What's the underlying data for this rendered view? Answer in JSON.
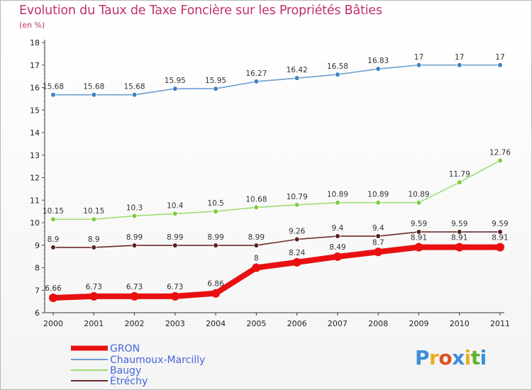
{
  "title": "Evolution du Taux de Taxe Foncière sur les Propriétés Bâties",
  "subtitle": "(en %)",
  "logo": {
    "letters": [
      "P",
      "r",
      "o",
      "x",
      "i",
      "t",
      "i"
    ],
    "colors": [
      "#3a8fd8",
      "#e8b020",
      "#e05020",
      "#3a8fd8",
      "#e8b020",
      "#60b030",
      "#3a8fd8"
    ]
  },
  "chart_data": {
    "type": "line",
    "title": "Evolution du Taux de Taxe Foncière sur les Propriétés Bâties",
    "ylabel": "(en %)",
    "ylim": [
      6,
      18
    ],
    "yticks": [
      6,
      7,
      8,
      9,
      10,
      11,
      12,
      13,
      14,
      15,
      16,
      17,
      18
    ],
    "x": [
      "2000",
      "2001",
      "2002",
      "2003",
      "2004",
      "2005",
      "2006",
      "2007",
      "2008",
      "2009",
      "2010",
      "2011"
    ],
    "series": [
      {
        "name": "Chaumoux-Marcilly",
        "color": "#6b9fd0",
        "marker": "#3f82c5",
        "values": [
          15.68,
          15.68,
          15.68,
          15.95,
          15.95,
          16.27,
          16.42,
          16.58,
          16.83,
          17,
          17,
          17
        ],
        "labels": [
          "15.68",
          "15.68",
          "15.68",
          "15.95",
          "15.95",
          "16.27",
          "16.42",
          "16.58",
          "16.83",
          "17",
          "17",
          "17"
        ]
      },
      {
        "name": "Baugy",
        "color": "#9fdc6f",
        "marker": "#7ccc3f",
        "values": [
          10.15,
          10.15,
          10.3,
          10.4,
          10.5,
          10.68,
          10.79,
          10.89,
          10.89,
          10.89,
          11.79,
          12.76
        ],
        "labels": [
          "10.15",
          "10.15",
          "10.3",
          "10.4",
          "10.5",
          "10.68",
          "10.79",
          "10.89",
          "10.89",
          "10.89",
          "11.79",
          "12.76"
        ]
      },
      {
        "name": "Étréchy",
        "color": "#6b2a2a",
        "marker": "#5a1f1f",
        "values": [
          8.9,
          8.9,
          8.99,
          8.99,
          8.99,
          8.99,
          9.26,
          9.4,
          9.4,
          9.59,
          9.59,
          9.59
        ],
        "labels": [
          "8.9",
          "8.9",
          "8.99",
          "8.99",
          "8.99",
          "8.99",
          "9.26",
          "9.4",
          "9.4",
          "9.59",
          "9.59",
          "9.59"
        ]
      },
      {
        "name": "GRON",
        "color": "#e81010",
        "marker": "#e81010",
        "bold": true,
        "values": [
          6.66,
          6.73,
          6.73,
          6.73,
          6.86,
          8,
          8.24,
          8.49,
          8.7,
          8.91,
          8.91,
          8.91
        ],
        "labels": [
          "6.66",
          "6.73",
          "6.73",
          "6.73",
          "6.86",
          "8",
          "8.24",
          "8.49",
          "8.7",
          "8.91",
          "8.91",
          "8.91"
        ]
      }
    ],
    "legend": [
      "GRON",
      "Chaumoux-Marcilly",
      "Baugy",
      "Étréchy"
    ],
    "legend_position": "bottom-left"
  }
}
